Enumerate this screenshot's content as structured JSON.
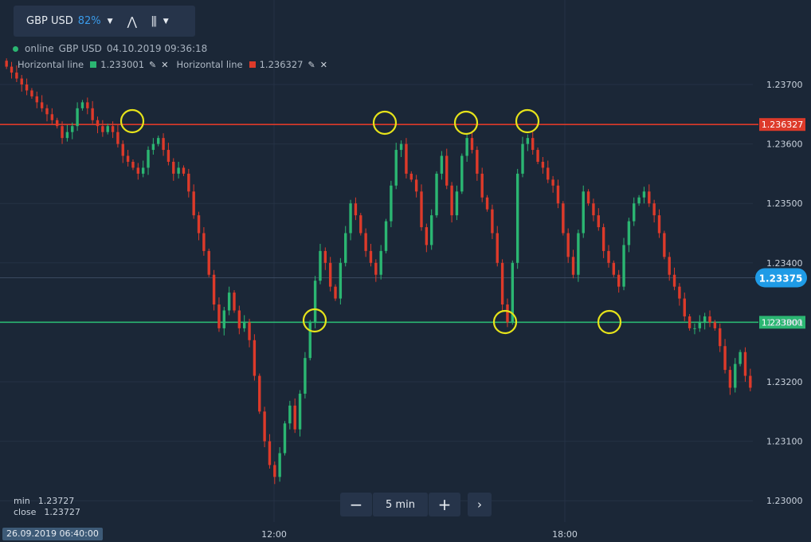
{
  "header": {
    "asset": "GBP USD",
    "payout": "82%",
    "status": "online",
    "pair": "GBP USD",
    "datetime": "04.10.2019 09:36:18"
  },
  "legend": [
    {
      "label": "Horizontal line",
      "value": "1.233001",
      "color": "#2bb672"
    },
    {
      "label": "Horizontal line",
      "value": "1.236327",
      "color": "#dd3a2a"
    }
  ],
  "info": {
    "min_label": "min",
    "min_value": "1.23727",
    "close_label": "close",
    "close_value": "1.23727"
  },
  "controls": {
    "minus": "−",
    "timeframe": "5 min",
    "plus": "+",
    "next": "›"
  },
  "start_date": "26.09.2019 06:40:00",
  "chart_data": {
    "type": "candlestick",
    "y_ticks": [
      "1.23700",
      "1.23600",
      "1.23500",
      "1.23400",
      "1.23300",
      "1.23200",
      "1.23100",
      "1.23000"
    ],
    "x_ticks": [
      "12:00",
      "18:00"
    ],
    "current_price": "1.23375",
    "horizontal_lines": [
      {
        "value": 1.236327,
        "label": "1.236327",
        "color": "#dd3a2a"
      },
      {
        "value": 1.233001,
        "label": "1.233001",
        "color": "#2bb672"
      }
    ],
    "colors": {
      "up": "#2bb672",
      "down": "#dd3a2a",
      "marker": "#e6e31a"
    },
    "closes": [
      1.2373,
      1.2372,
      1.2371,
      1.237,
      1.2369,
      1.2368,
      1.2367,
      1.2366,
      1.2365,
      1.2364,
      1.2363,
      1.2361,
      1.2362,
      1.2363,
      1.2366,
      1.2367,
      1.2366,
      1.2364,
      1.2363,
      1.2362,
      1.2363,
      1.2362,
      1.236,
      1.2358,
      1.2357,
      1.2356,
      1.2355,
      1.2356,
      1.2359,
      1.236,
      1.2361,
      1.2359,
      1.2357,
      1.2355,
      1.2356,
      1.2355,
      1.2352,
      1.2348,
      1.2345,
      1.2342,
      1.2338,
      1.2333,
      1.2329,
      1.2332,
      1.2335,
      1.2332,
      1.2329,
      1.233,
      1.2327,
      1.2321,
      1.2315,
      1.231,
      1.2306,
      1.2304,
      1.2308,
      1.2313,
      1.2316,
      1.2312,
      1.2318,
      1.2324,
      1.233,
      1.2337,
      1.2342,
      1.234,
      1.2336,
      1.2334,
      1.234,
      1.2345,
      1.235,
      1.2348,
      1.2345,
      1.2342,
      1.234,
      1.2338,
      1.2342,
      1.2347,
      1.2353,
      1.2359,
      1.236,
      1.2355,
      1.2354,
      1.2352,
      1.2346,
      1.2343,
      1.2348,
      1.2355,
      1.2358,
      1.2353,
      1.2348,
      1.2352,
      1.2358,
      1.2361,
      1.2359,
      1.2355,
      1.2351,
      1.2349,
      1.2345,
      1.234,
      1.2333,
      1.233,
      1.234,
      1.2355,
      1.236,
      1.2361,
      1.2359,
      1.2357,
      1.2356,
      1.2354,
      1.2353,
      1.235,
      1.2345,
      1.2341,
      1.2338,
      1.2345,
      1.2352,
      1.235,
      1.2348,
      1.2346,
      1.2342,
      1.234,
      1.2338,
      1.2336,
      1.2343,
      1.2347,
      1.235,
      1.2351,
      1.2352,
      1.235,
      1.2348,
      1.2345,
      1.2341,
      1.2338,
      1.2336,
      1.2334,
      1.2331,
      1.2329,
      1.2329,
      1.233,
      1.2331,
      1.233,
      1.2329,
      1.2326,
      1.2322,
      1.2319,
      1.2323,
      1.2325,
      1.2321,
      1.2319
    ]
  }
}
